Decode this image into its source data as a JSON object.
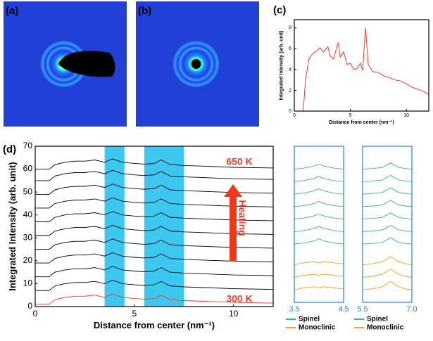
{
  "chart_data": [
    {
      "type": "image",
      "label": "(a)",
      "beam_stop": true
    },
    {
      "type": "image",
      "label": "(b)",
      "beam_stop": false
    },
    {
      "type": "line",
      "label": "(c)",
      "color": "#e8402a",
      "x_label": "Distance from center (nm⁻¹)",
      "y_label": "Integrated Intensity (arb. unit)",
      "x": [
        0.8,
        1.0,
        1.3,
        1.6,
        2.0,
        2.3,
        2.6,
        3.0,
        3.2,
        3.5,
        3.9,
        4.1,
        4.4,
        4.7,
        5.0,
        5.3,
        5.6,
        5.9,
        6.1,
        6.35,
        6.6,
        7.0,
        7.5,
        8.0,
        8.5,
        9.0,
        9.5,
        10.0,
        10.5,
        11.0,
        11.5,
        12.0
      ],
      "values": [
        0,
        3,
        5,
        5.5,
        5.8,
        6.1,
        5.7,
        6.2,
        5.3,
        5.0,
        6.6,
        5.2,
        5.7,
        4.5,
        4.6,
        4.0,
        4.1,
        4.6,
        3.9,
        8.0,
        4.5,
        3.8,
        3.7,
        3.4,
        3.2,
        3.0,
        2.9,
        2.6,
        2.3,
        2.1,
        1.9,
        1.6
      ],
      "xlim": [
        0,
        12
      ],
      "ylim": [
        0,
        8.8
      ],
      "xticks": [
        0,
        5,
        10
      ],
      "yticks": [
        0,
        2,
        4,
        6,
        8
      ],
      "grid": false
    },
    {
      "type": "waterfall",
      "label": "(d)",
      "x_label": "Distance from center (nm⁻¹)",
      "y_label": "Integrated Intensity (arb. unit)",
      "annotations": [
        "650 K",
        "300 K",
        "Heating"
      ],
      "highlight_ranges": [
        [
          3.5,
          4.5
        ],
        [
          5.5,
          7.5
        ]
      ],
      "highlight_color": "#3cc8f0",
      "x": [
        0,
        0.7,
        1.0,
        1.5,
        2.0,
        2.5,
        3.0,
        3.5,
        3.9,
        4.4,
        5.0,
        5.5,
        6.0,
        6.35,
        6.8,
        7.5,
        8.5,
        10,
        12
      ],
      "series": [
        {
          "color": "#e8402a",
          "curves": [
            [
              1,
              1,
              3,
              4,
              4.5,
              4.5,
              5,
              4,
              5.5,
              4,
              3.5,
              3.2,
              3.5,
              5,
              3,
              2.6,
              2.3,
              1.8,
              1.5
            ]
          ]
        },
        {
          "color": "#000000",
          "curves": [
            [
              7,
              7,
              9,
              10,
              10.5,
              10.5,
              11,
              10,
              11.5,
              10,
              9.5,
              9.2,
              9.5,
              11,
              9,
              8.6,
              8.3,
              7.8,
              7.5
            ],
            [
              13,
              13,
              15,
              16,
              16.5,
              16.5,
              17,
              16,
              17.5,
              16,
              15.5,
              15.2,
              15.5,
              17,
              15,
              14.6,
              14.3,
              13.8,
              13.5
            ],
            [
              19,
              19,
              21,
              22,
              22.5,
              22.5,
              23,
              22,
              23.5,
              22,
              21.5,
              21.2,
              21.5,
              23,
              21,
              20.6,
              20.3,
              19.8,
              19.5
            ],
            [
              25,
              25,
              27,
              28,
              28.5,
              28.5,
              29,
              28,
              29.5,
              28,
              27.5,
              27.2,
              27.5,
              29,
              27,
              26.6,
              26.3,
              25.8,
              25.5
            ],
            [
              31,
              31,
              33,
              34,
              34.5,
              34.5,
              35,
              34,
              35.5,
              34,
              33.5,
              33.2,
              33.5,
              35,
              33,
              32.6,
              32.3,
              31.8,
              31.5
            ],
            [
              37,
              37,
              39,
              40,
              40.5,
              40.5,
              41,
              40,
              41.5,
              40,
              39.5,
              39.2,
              39.5,
              41,
              39,
              38.6,
              38.3,
              37.8,
              37.5
            ],
            [
              43,
              43,
              45,
              46,
              46.5,
              46.5,
              47,
              46,
              47.5,
              46,
              45.5,
              45.2,
              45.5,
              47,
              45,
              44.6,
              44.3,
              43.8,
              43.5
            ],
            [
              49,
              49,
              51,
              52,
              52.5,
              52.5,
              53,
              52,
              53.5,
              52,
              51.5,
              51.2,
              51.5,
              53,
              51,
              50.6,
              50.3,
              49.8,
              49.5
            ],
            [
              55,
              55,
              57,
              58,
              58.5,
              58.5,
              59,
              58,
              59.5,
              58,
              57.5,
              57.2,
              57.5,
              59,
              57,
              56.6,
              56.3,
              55.8,
              55.5
            ],
            [
              60,
              60,
              62,
              63,
              63.5,
              63.5,
              64,
              63,
              64.5,
              63,
              62.5,
              62.2,
              62.5,
              64,
              62,
              61.6,
              61.3,
              60.8,
              60.5
            ]
          ]
        }
      ],
      "xlim": [
        0,
        12
      ],
      "ylim": [
        0,
        70
      ],
      "xticks": [
        0,
        5,
        10
      ],
      "yticks": [
        0,
        10,
        20,
        30,
        40,
        50,
        60,
        70
      ],
      "grid": false
    },
    {
      "type": "waterfall",
      "x": [
        3.5,
        3.7,
        3.9,
        4.0,
        4.1,
        4.3,
        4.5
      ],
      "series": [
        {
          "name": "Spinel",
          "color": "#3cb878",
          "curves": [
            [
              28,
              28.5,
              29.5,
              30.5,
              29.5,
              28.5,
              28
            ],
            [
              34,
              34.5,
              35.5,
              36.5,
              35.5,
              34.5,
              34
            ],
            [
              40,
              40.5,
              41.5,
              42.5,
              41.5,
              40.5,
              40
            ],
            [
              46,
              46.5,
              47.5,
              48.5,
              47.5,
              46.5,
              46
            ],
            [
              52,
              52.5,
              53.5,
              54.5,
              53.5,
              52.5,
              52
            ],
            [
              58,
              58.5,
              59.5,
              60.5,
              59.5,
              58.5,
              58
            ],
            [
              64,
              64.5,
              65.5,
              66.5,
              65.5,
              64.5,
              64
            ]
          ]
        },
        {
          "name": "Monoclinic",
          "color": "#f0a020",
          "curves": [
            [
              6,
              7,
              7.5,
              7,
              7.5,
              7,
              6.5
            ],
            [
              12,
              13,
              13.5,
              13,
              13.5,
              13,
              12.5
            ],
            [
              18,
              19,
              19.5,
              19,
              19.5,
              19,
              18.5
            ]
          ]
        }
      ],
      "xlim": [
        3.5,
        4.5
      ],
      "ylim": [
        0,
        75
      ],
      "xticks": [
        3.5,
        4.5
      ],
      "frame_color": "#2a7fd4"
    },
    {
      "type": "waterfall",
      "x": [
        5.5,
        5.8,
        6.1,
        6.35,
        6.6,
        6.8,
        7.0
      ],
      "series": [
        {
          "name": "Spinel",
          "color": "#3cb878",
          "curves": [
            [
              28,
              28.3,
              28.8,
              31,
              28.8,
              28.3,
              28
            ],
            [
              34,
              34.3,
              34.8,
              37,
              34.8,
              34.3,
              34
            ],
            [
              40,
              40.3,
              40.8,
              43,
              40.8,
              40.3,
              40
            ],
            [
              46,
              46.3,
              46.8,
              49,
              46.8,
              46.3,
              46
            ],
            [
              52,
              52.3,
              52.8,
              55,
              52.8,
              52.3,
              52
            ],
            [
              58,
              58.3,
              58.8,
              61,
              58.8,
              58.3,
              58
            ],
            [
              64,
              64.3,
              64.8,
              67,
              64.8,
              64.3,
              64
            ]
          ]
        },
        {
          "name": "Monoclinic",
          "color": "#f0a020",
          "curves": [
            [
              6,
              6.5,
              7.5,
              10,
              7.5,
              6.5,
              6
            ],
            [
              12,
              12.5,
              13.5,
              16,
              13.5,
              12.5,
              12
            ],
            [
              18,
              18.5,
              19.5,
              22,
              19.5,
              18.5,
              18
            ]
          ]
        }
      ],
      "xlim": [
        5.5,
        7
      ],
      "ylim": [
        0,
        75
      ],
      "xticks": [
        5.5,
        {
          "value": 7,
          "label": "7.0"
        }
      ],
      "frame_color": "#2a7fd4"
    }
  ]
}
